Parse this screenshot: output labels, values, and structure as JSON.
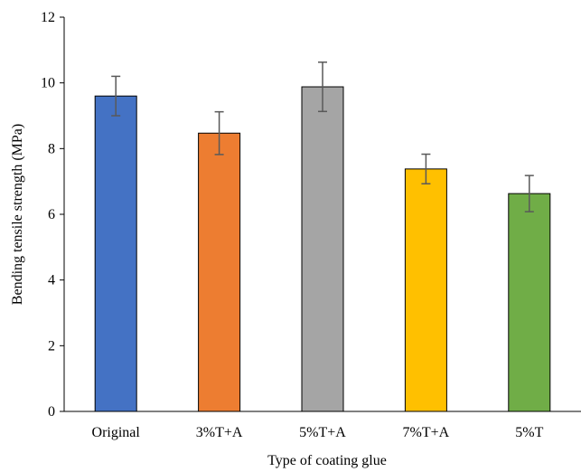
{
  "chart_data": {
    "type": "bar",
    "title": "",
    "xlabel": "Type of coating glue",
    "ylabel": "Bending tensile strength (MPa)",
    "categories": [
      "Original",
      "3%T+A",
      "5%T+A",
      "7%T+A",
      "5%T"
    ],
    "values": [
      9.6,
      8.47,
      9.88,
      7.38,
      6.63
    ],
    "errors": [
      0.6,
      0.65,
      0.75,
      0.45,
      0.55
    ],
    "colors": [
      "#4472C4",
      "#ED7D31",
      "#A5A5A5",
      "#FFC000",
      "#70AD47"
    ],
    "ylim": [
      0,
      12
    ],
    "yticks": [
      0,
      2,
      4,
      6,
      8,
      10,
      12
    ],
    "grid": false,
    "legend": "none"
  }
}
